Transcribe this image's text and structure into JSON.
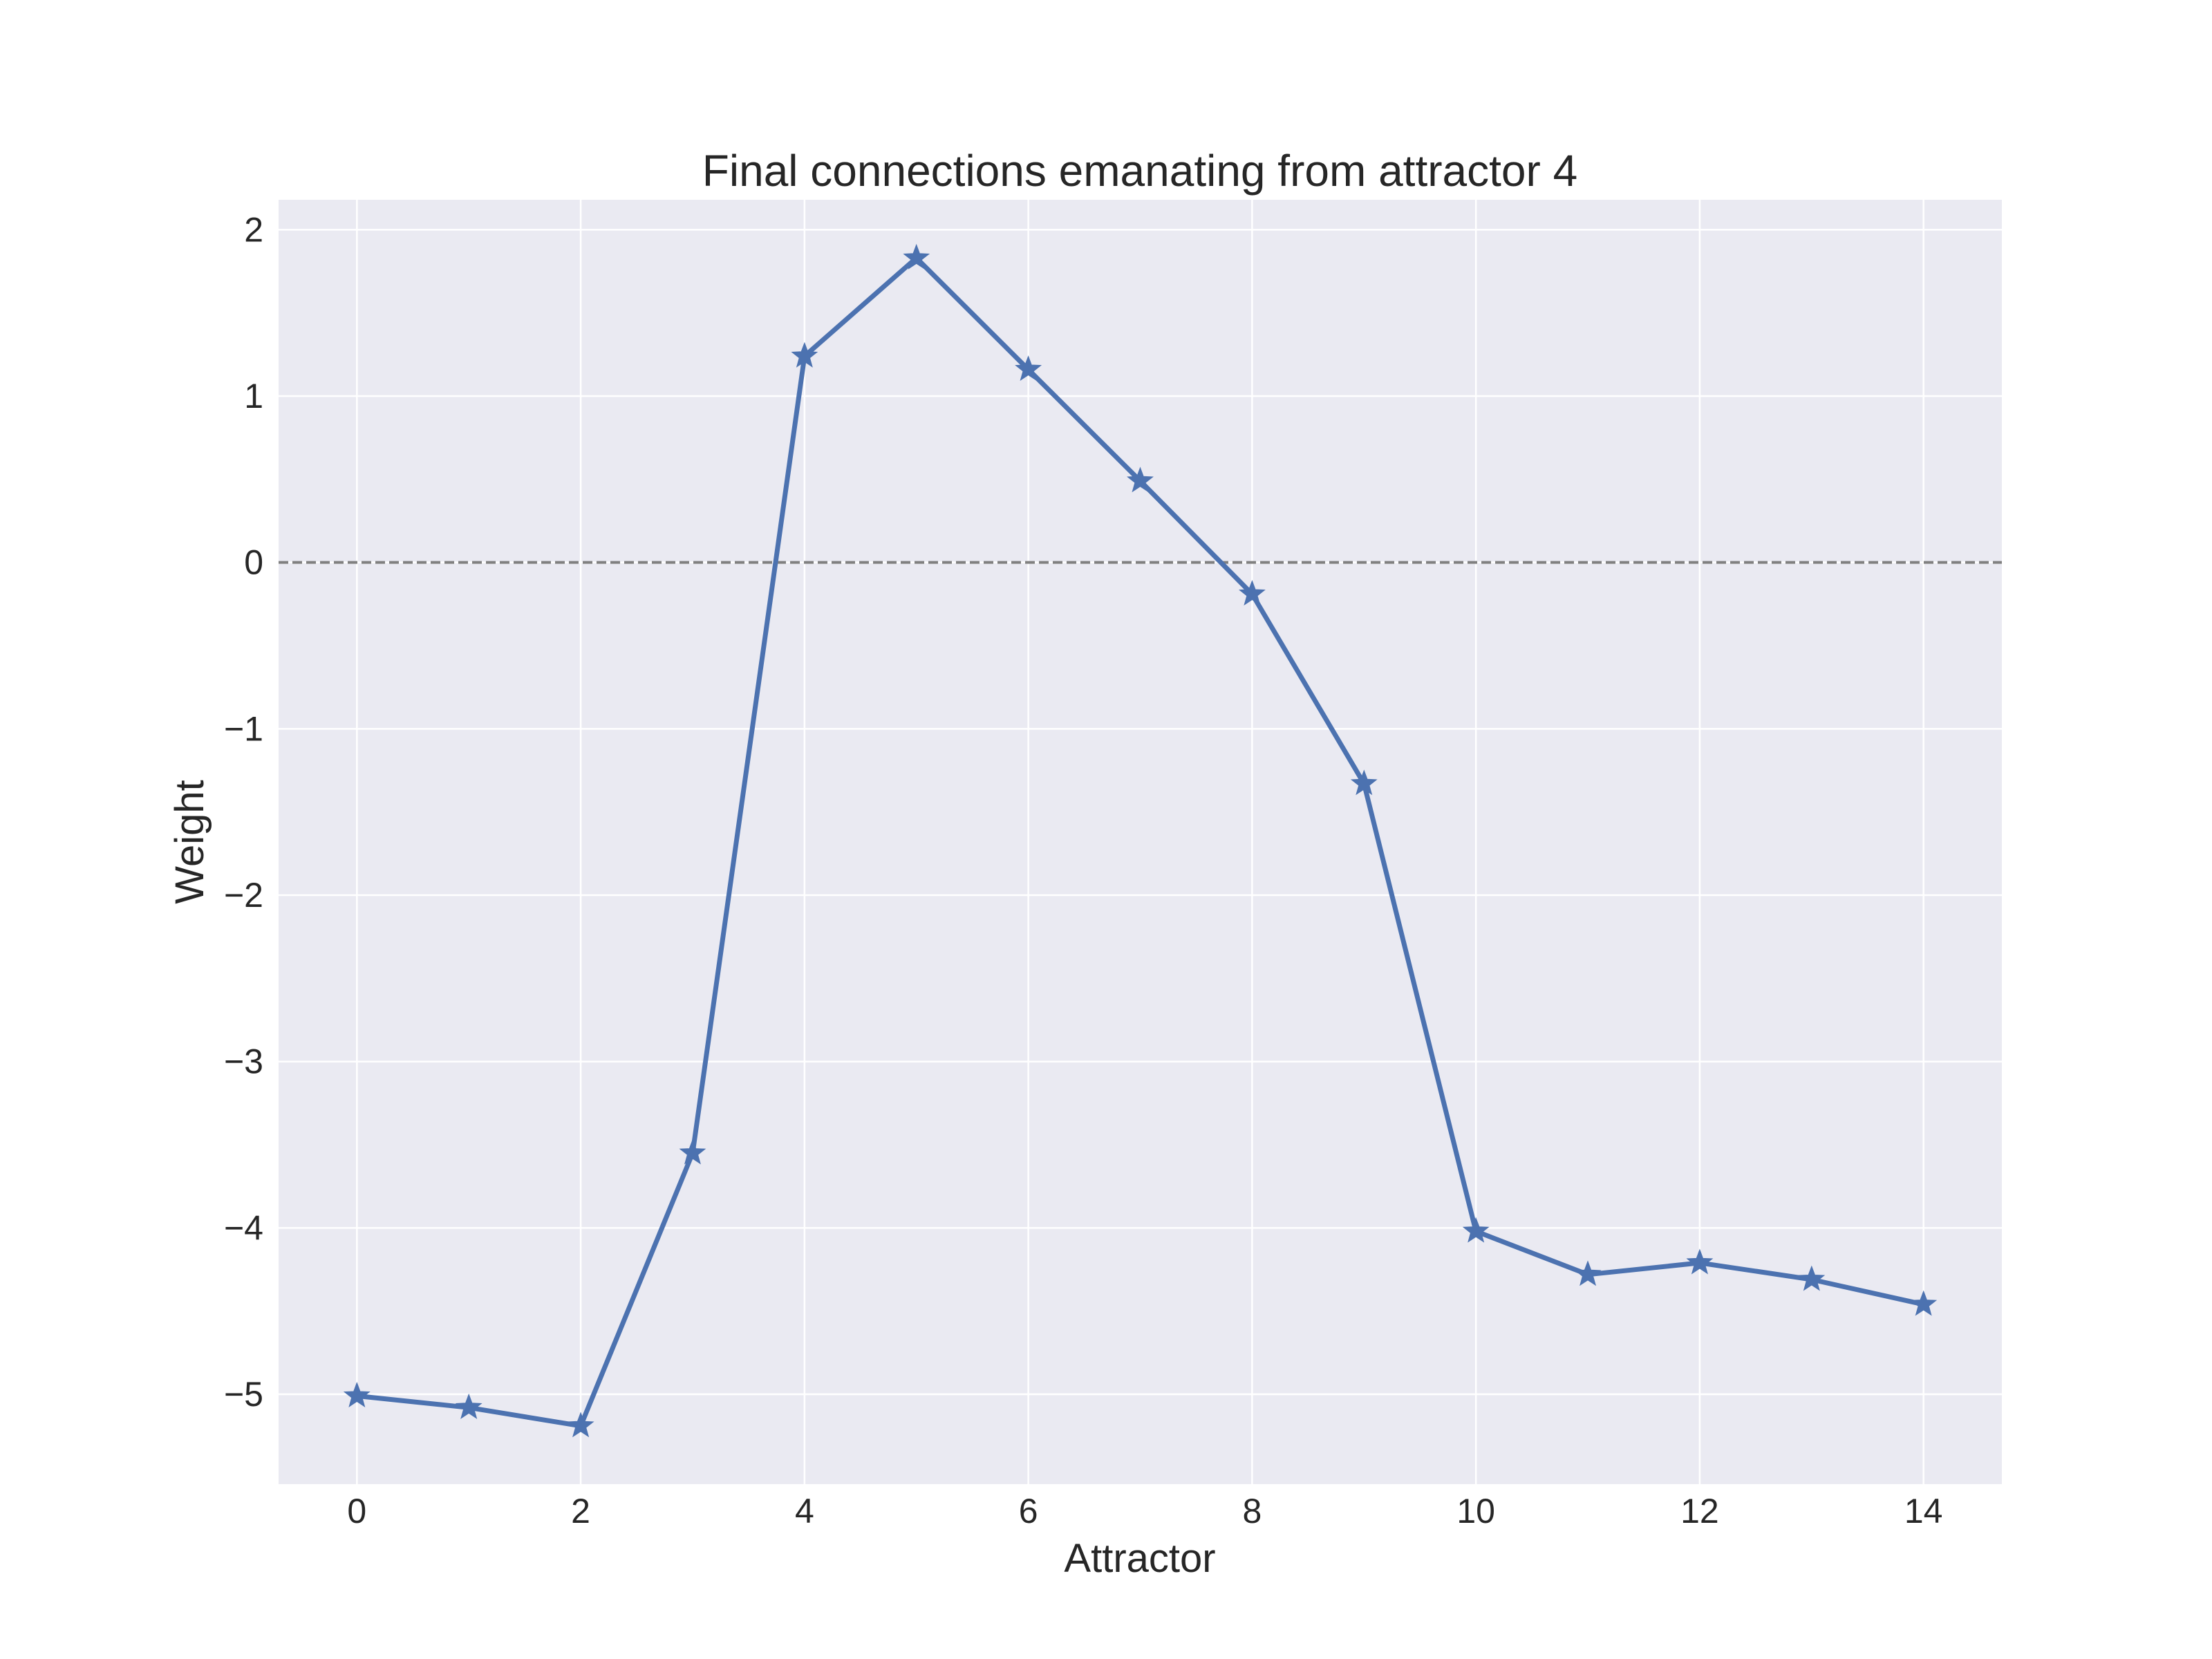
{
  "chart_data": {
    "type": "line",
    "title": "Final connections emanating from attractor 4",
    "xlabel": "Attractor",
    "ylabel": "Weight",
    "xlim": [
      -0.7,
      14.7
    ],
    "ylim": [
      -5.54,
      2.18
    ],
    "x": [
      0,
      1,
      2,
      3,
      4,
      5,
      6,
      7,
      8,
      9,
      10,
      11,
      12,
      13,
      14
    ],
    "series": [
      {
        "values": [
          -5.01,
          -5.08,
          -5.19,
          -3.55,
          1.24,
          1.83,
          1.16,
          0.49,
          -0.19,
          -1.33,
          -4.02,
          -4.28,
          -4.21,
          -4.31,
          -4.46
        ],
        "color": "#4c72b0",
        "marker": "star"
      }
    ],
    "xticks": [
      0,
      2,
      4,
      6,
      8,
      10,
      12,
      14
    ],
    "xtick_labels": [
      "0",
      "2",
      "4",
      "6",
      "8",
      "10",
      "12",
      "14"
    ],
    "yticks": [
      2,
      1,
      0,
      -1,
      -2,
      -3,
      -4,
      -5
    ],
    "ytick_labels": [
      "2",
      "1",
      "0",
      "−1",
      "−2",
      "−3",
      "−4",
      "−5"
    ],
    "reference_line": {
      "y": 0,
      "style": "dashed",
      "color": "#808080"
    },
    "grid": true,
    "background_color": "#eaeaf2",
    "grid_color": "#ffffff"
  }
}
